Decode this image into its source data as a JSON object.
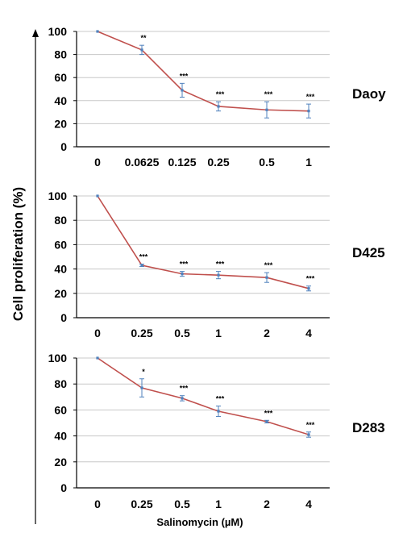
{
  "colors": {
    "line": "#C0504D",
    "marker": "#4F81BD",
    "grid": "#C8C8C8",
    "axis": "#000000",
    "errorbar": "#4F81BD"
  },
  "figure": {
    "ylabel": "Cell proliferation (%)",
    "xlabel": "Salinomycin (µM)"
  },
  "chart_data": [
    {
      "type": "line",
      "panel_label": "Daoy",
      "categories": [
        "0",
        "0.0625",
        "0.125",
        "0.25",
        "0.5",
        "1"
      ],
      "values": [
        100,
        84,
        49,
        35,
        32,
        31
      ],
      "errors": [
        0.5,
        4,
        6,
        4,
        7,
        6
      ],
      "significance": [
        "",
        "**",
        "***",
        "***",
        "***",
        "***"
      ],
      "ylim": [
        0,
        100
      ],
      "yticks": [
        0,
        20,
        40,
        60,
        80,
        100
      ],
      "grid": true
    },
    {
      "type": "line",
      "panel_label": "D425",
      "categories": [
        "0",
        "0.25",
        "0.5",
        "1",
        "2",
        "4"
      ],
      "values": [
        100,
        43,
        36,
        35,
        33,
        24
      ],
      "errors": [
        0.5,
        1,
        2,
        3,
        4,
        2
      ],
      "significance": [
        "",
        "***",
        "***",
        "***",
        "***",
        "***"
      ],
      "ylim": [
        0,
        100
      ],
      "yticks": [
        0,
        20,
        40,
        60,
        80,
        100
      ],
      "grid": true
    },
    {
      "type": "line",
      "panel_label": "D283",
      "categories": [
        "0",
        "0.25",
        "0.5",
        "1",
        "2",
        "4"
      ],
      "values": [
        100,
        77,
        69,
        59,
        51,
        41
      ],
      "errors": [
        0.5,
        7,
        2,
        4,
        1,
        2
      ],
      "significance": [
        "",
        "*",
        "***",
        "***",
        "***",
        "***"
      ],
      "ylim": [
        0,
        100
      ],
      "yticks": [
        0,
        20,
        40,
        60,
        80,
        100
      ],
      "grid": true
    }
  ]
}
